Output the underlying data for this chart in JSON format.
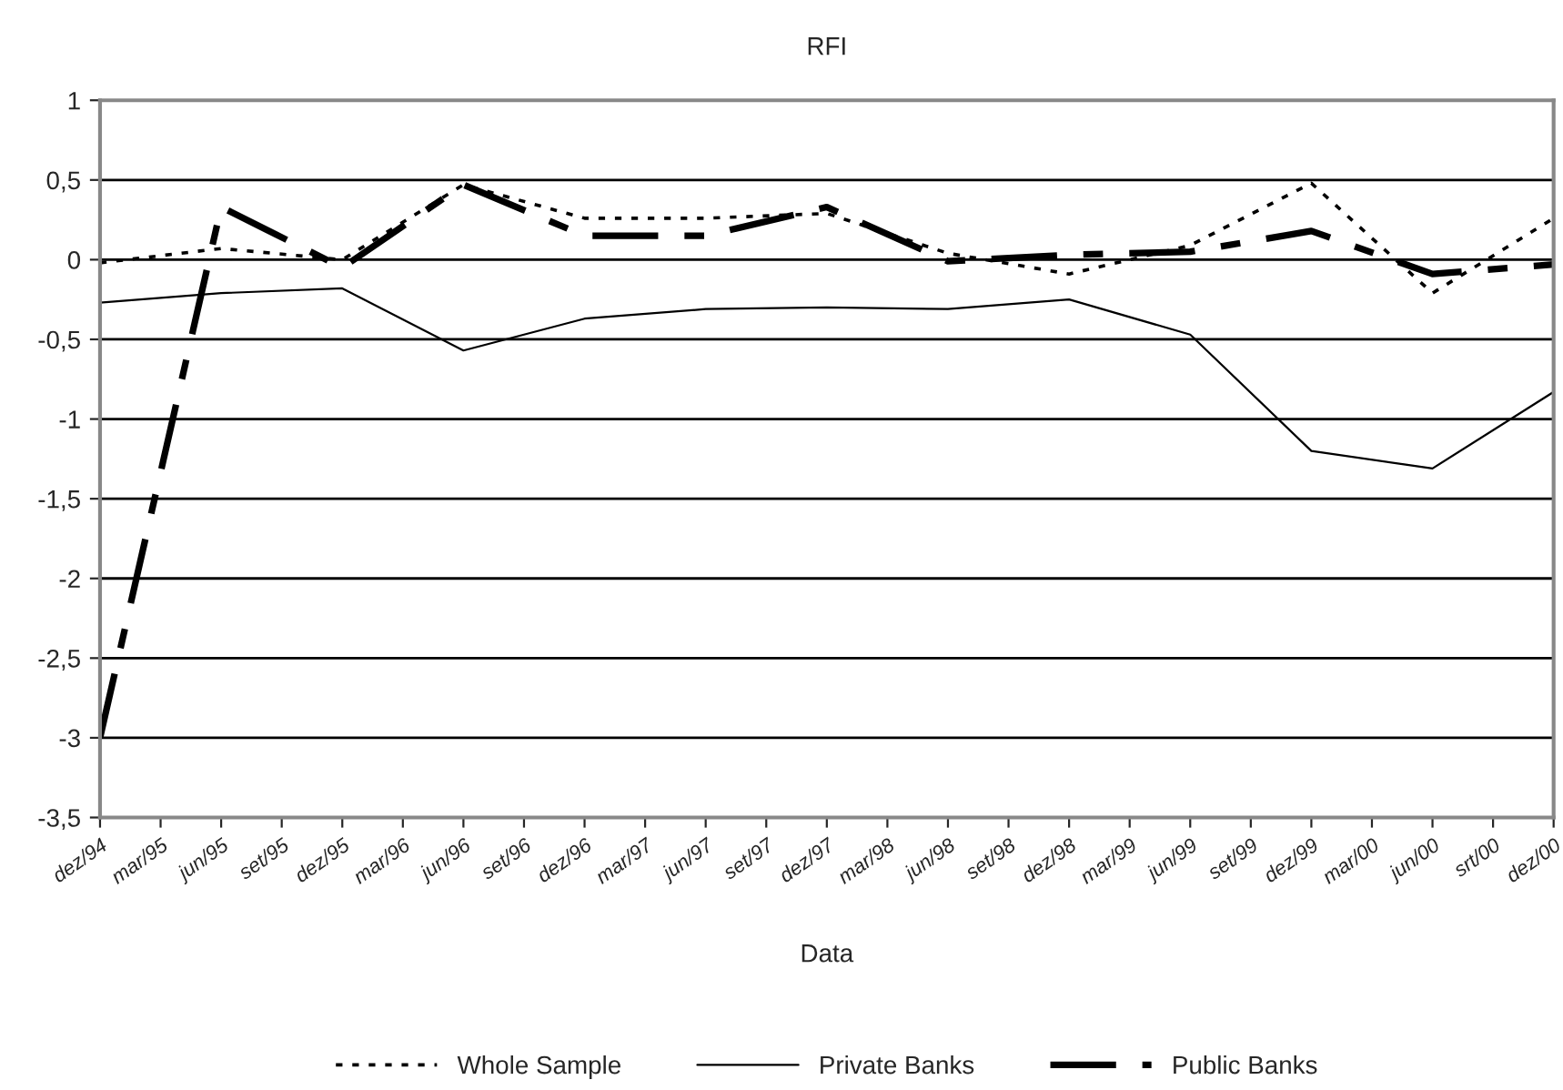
{
  "chart_data": {
    "type": "line",
    "title": "RFI",
    "xlabel": "Data",
    "categories": [
      "dez/94",
      "mar/95",
      "jun/95",
      "set/95",
      "dez/95",
      "mar/96",
      "jun/96",
      "set/96",
      "dez/96",
      "mar/97",
      "jun/97",
      "set/97",
      "dez/97",
      "mar/98",
      "jun/98",
      "set/98",
      "dez/98",
      "mar/99",
      "jun/99",
      "set/99",
      "dez/99",
      "mar/00",
      "jun/00",
      "srt/00",
      "dez/00"
    ],
    "series": [
      {
        "name": "Whole Sample",
        "color": "#000000",
        "line_style": "dotted",
        "values": [
          -0.02,
          null,
          0.07,
          null,
          0.0,
          null,
          0.47,
          null,
          0.26,
          null,
          0.26,
          null,
          0.29,
          null,
          0.04,
          null,
          -0.09,
          null,
          0.09,
          null,
          0.48,
          null,
          -0.21,
          null,
          0.26
        ]
      },
      {
        "name": "Private Banks",
        "color": "#000000",
        "line_style": "solid",
        "values": [
          -0.27,
          null,
          -0.21,
          null,
          -0.18,
          null,
          -0.57,
          null,
          -0.37,
          null,
          -0.31,
          null,
          -0.3,
          null,
          -0.31,
          null,
          -0.25,
          null,
          -0.47,
          null,
          -1.2,
          null,
          -1.31,
          null,
          -0.83
        ]
      },
      {
        "name": "Public Banks",
        "color": "#000000",
        "line_style": "dashed",
        "values": [
          -3.0,
          null,
          0.33,
          null,
          -0.05,
          null,
          0.47,
          null,
          0.15,
          null,
          0.15,
          null,
          0.33,
          null,
          -0.01,
          null,
          0.03,
          null,
          0.05,
          null,
          0.18,
          null,
          -0.09,
          null,
          -0.03
        ]
      }
    ],
    "ylim": [
      -3.5,
      1
    ],
    "yticks": [
      {
        "value": -3.5,
        "label": "-3,5"
      },
      -3,
      {
        "value": -2.5,
        "label": "-2,5"
      },
      -2,
      {
        "value": -1.5,
        "label": "-1,5"
      },
      -1,
      {
        "value": -0.5,
        "label": "-0,5"
      },
      0,
      {
        "value": 0.5,
        "label": "0,5"
      },
      1
    ],
    "grid": "y",
    "legend": "bottom",
    "marker": "none"
  }
}
